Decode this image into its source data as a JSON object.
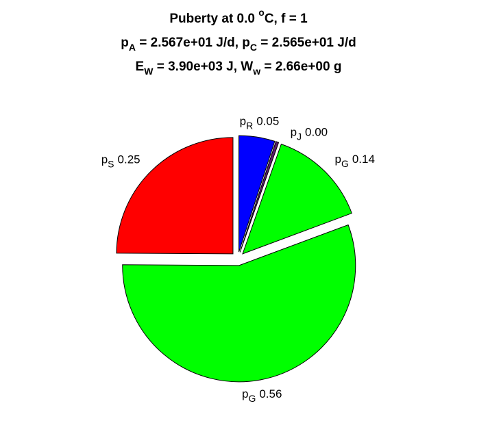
{
  "chart_data": {
    "type": "pie",
    "title_lines": [
      [
        {
          "text": "Puberty at 0.0 "
        },
        {
          "text": "o",
          "shift": "super"
        },
        {
          "text": "C, f = 1"
        }
      ],
      [
        {
          "text": "p"
        },
        {
          "text": "A",
          "shift": "sub"
        },
        {
          "text": " = 2.567e+01 J/d,  p"
        },
        {
          "text": "C",
          "shift": "sub"
        },
        {
          "text": " = 2.565e+01 J/d"
        }
      ],
      [
        {
          "text": "E"
        },
        {
          "text": "W",
          "shift": "sub"
        },
        {
          "text": " = 3.90e+03 J, W"
        },
        {
          "text": "w",
          "shift": "sub"
        },
        {
          "text": " = 2.66e+00 g"
        }
      ]
    ],
    "labels": [
      {
        "text": "p",
        "sub": "R"
      },
      {
        "text": "p",
        "sub": "J"
      },
      {
        "text": "p",
        "sub": "G"
      },
      {
        "text": "p",
        "sub": "G"
      },
      {
        "text": "p",
        "sub": "S"
      }
    ],
    "values": [
      0.05,
      0.004,
      0.14,
      0.56,
      0.25
    ],
    "value_labels": [
      "0.05",
      "0.00",
      "0.14",
      "0.56",
      "0.25"
    ],
    "colors": [
      "#0000ff",
      "#5a1a6a",
      "#00ff00",
      "#00ff00",
      "#ff0000"
    ],
    "exploded": true
  }
}
